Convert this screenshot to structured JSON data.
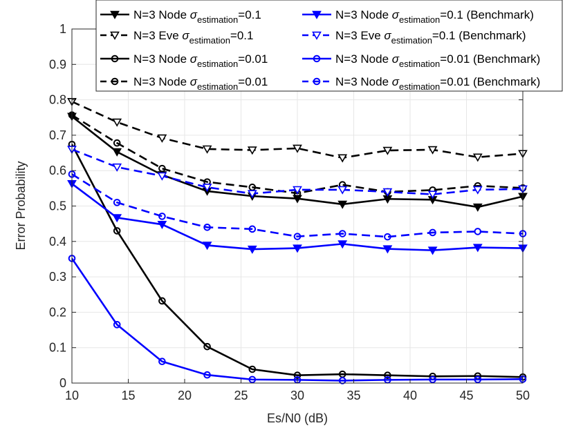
{
  "chart_data": {
    "type": "line",
    "xlabel": "Es/N0 (dB)",
    "ylabel": "Error Probability",
    "xlim": [
      10,
      50
    ],
    "ylim": [
      0,
      1
    ],
    "grid": true,
    "legend_position": "top-right",
    "x": [
      10,
      14,
      18,
      22,
      26,
      30,
      34,
      38,
      42,
      46,
      50
    ],
    "xticks": [
      10,
      15,
      20,
      25,
      30,
      35,
      40,
      45,
      50
    ],
    "yticks": [
      0,
      0.1,
      0.2,
      0.3,
      0.4,
      0.5,
      0.6,
      0.7,
      0.8,
      0.9,
      1
    ],
    "series": [
      {
        "name": "N=3 Node σestimation=0.1",
        "label": {
          "pre": "N=3 Node ",
          "sym": "σ",
          "sub": "estimation",
          "post": "=0.1"
        },
        "color": "#000000",
        "dash": "solid",
        "marker": "triangle-down-filled",
        "values": [
          0.753,
          0.653,
          0.588,
          0.542,
          0.528,
          0.521,
          0.505,
          0.52,
          0.518,
          0.497,
          0.527
        ]
      },
      {
        "name": "N=3 Eve σestimation=0.1",
        "label": {
          "pre": "N=3 Eve ",
          "sym": "σ",
          "sub": "estimation",
          "post": "=0.1"
        },
        "color": "#000000",
        "dash": "dashed",
        "marker": "triangle-down-open",
        "values": [
          0.795,
          0.737,
          0.692,
          0.661,
          0.658,
          0.663,
          0.636,
          0.657,
          0.659,
          0.638,
          0.648
        ]
      },
      {
        "name": "N=3 Node σestimation=0.01",
        "label": {
          "pre": "N=3 Node ",
          "sym": "σ",
          "sub": "estimation",
          "post": "=0.01"
        },
        "color": "#000000",
        "dash": "solid",
        "marker": "circle-open",
        "values": [
          0.674,
          0.43,
          0.232,
          0.103,
          0.039,
          0.022,
          0.025,
          0.022,
          0.019,
          0.02,
          0.017
        ]
      },
      {
        "name": "N=3 Node σestimation=0.01",
        "label": {
          "pre": "N=3 Node ",
          "sym": "σ",
          "sub": "estimation",
          "post": "=0.01"
        },
        "color": "#000000",
        "dash": "dashed",
        "marker": "circle-open",
        "values": [
          0.757,
          0.678,
          0.606,
          0.568,
          0.553,
          0.536,
          0.56,
          0.54,
          0.545,
          0.557,
          0.551
        ]
      },
      {
        "name": "N=3 Node σestimation=0.1 (Benchmark)",
        "label": {
          "pre": "N=3 Node ",
          "sym": "σ",
          "sub": "estimation",
          "post": "=0.1 (Benchmark)"
        },
        "color": "#0000ff",
        "dash": "solid",
        "marker": "triangle-down-filled",
        "values": [
          0.563,
          0.467,
          0.448,
          0.389,
          0.378,
          0.381,
          0.393,
          0.379,
          0.375,
          0.383,
          0.381
        ]
      },
      {
        "name": "N=3 Eve σestimation=0.1 (Benchmark)",
        "label": {
          "pre": "N=3 Eve ",
          "sym": "σ",
          "sub": "estimation",
          "post": "=0.1 (Benchmark)"
        },
        "color": "#0000ff",
        "dash": "dashed",
        "marker": "triangle-down-open",
        "values": [
          0.66,
          0.61,
          0.585,
          0.553,
          0.535,
          0.546,
          0.546,
          0.54,
          0.533,
          0.546,
          0.548
        ]
      },
      {
        "name": "N=3 Node σestimation=0.01 (Benchmark)",
        "label": {
          "pre": "N=3 Node ",
          "sym": "σ",
          "sub": "estimation",
          "post": "=0.01 (Benchmark)"
        },
        "color": "#0000ff",
        "dash": "solid",
        "marker": "circle-open",
        "values": [
          0.352,
          0.165,
          0.061,
          0.023,
          0.01,
          0.009,
          0.007,
          0.009,
          0.01,
          0.01,
          0.011
        ]
      },
      {
        "name": "N=3 Node σestimation=0.01 (Benchmark)",
        "label": {
          "pre": "N=3 Node ",
          "sym": "σ",
          "sub": "estimation",
          "post": "=0.01 (Benchmark)"
        },
        "color": "#0000ff",
        "dash": "dashed",
        "marker": "circle-open",
        "values": [
          0.59,
          0.51,
          0.471,
          0.44,
          0.435,
          0.414,
          0.422,
          0.413,
          0.425,
          0.428,
          0.422
        ]
      }
    ]
  }
}
